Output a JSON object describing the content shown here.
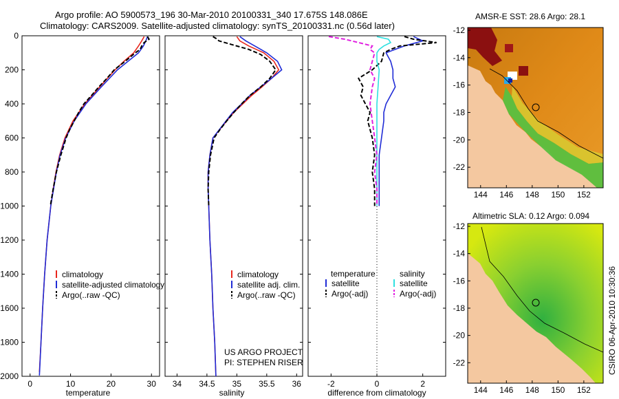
{
  "header": {
    "line1": "Argo profile: AO 5900573_196 30-Mar-2010 20100331_340 17.675S 148.086E",
    "line2": "Climatology: CARS2009. Satellite-adjusted climatology: synTS_20100331.nc (0.56d later)"
  },
  "colors": {
    "climatology": "#e8261c",
    "satellite": "#1f2bd6",
    "argo": "#000000",
    "sal_satellite": "#2ee0e0",
    "sal_argo": "#e020e0",
    "land": "#f4c8a0"
  },
  "chart_data": [
    {
      "type": "line",
      "id": "temperature-profile",
      "xlabel": "temperature",
      "ylabel": "",
      "xlim": [
        -2,
        32
      ],
      "ylim": [
        2000,
        0
      ],
      "xticks": [
        0,
        10,
        20,
        30
      ],
      "yticks": [
        0,
        200,
        400,
        600,
        800,
        1000,
        1200,
        1400,
        1600,
        1800,
        2000
      ],
      "legend": [
        "climatology",
        "satellite-adjusted climatology",
        "Argo(..raw -QC)"
      ],
      "series": [
        {
          "name": "climatology",
          "depth": [
            5,
            30,
            60,
            100,
            150,
            200,
            300,
            400,
            500,
            600,
            700,
            800,
            900,
            1000,
            1200,
            1400,
            1600,
            1800,
            1975
          ],
          "values": [
            28.2,
            27.6,
            26.8,
            25.6,
            23.2,
            21.0,
            17.2,
            13.5,
            10.6,
            8.6,
            7.3,
            6.4,
            5.7,
            5.1,
            4.2,
            3.6,
            3.1,
            2.7,
            2.3
          ]
        },
        {
          "name": "satellite-adjusted climatology",
          "depth": [
            5,
            30,
            60,
            100,
            150,
            200,
            300,
            400,
            500,
            600,
            700,
            800,
            900,
            1000,
            1200,
            1400,
            1600,
            1800,
            1995
          ],
          "values": [
            29.0,
            28.6,
            28.0,
            26.8,
            24.2,
            21.6,
            17.6,
            13.8,
            10.9,
            8.8,
            7.4,
            6.5,
            5.8,
            5.1,
            4.2,
            3.6,
            3.1,
            2.7,
            2.3
          ]
        },
        {
          "name": "Argo(..raw -QC)",
          "depth": [
            5,
            20,
            40,
            60,
            80,
            100,
            150,
            200,
            250,
            300,
            350,
            400,
            450,
            500,
            550,
            600,
            700,
            800,
            900,
            1000
          ],
          "values": [
            29.0,
            29.4,
            28.2,
            27.6,
            27.2,
            26.0,
            23.5,
            20.8,
            19.0,
            17.0,
            15.2,
            13.3,
            12.0,
            10.9,
            9.8,
            8.9,
            7.6,
            6.5,
            5.7,
            5.0
          ]
        }
      ]
    },
    {
      "type": "line",
      "id": "salinity-profile",
      "xlabel": "salinity",
      "ylabel": "",
      "xlim": [
        33.8,
        36.1
      ],
      "ylim": [
        2000,
        0
      ],
      "xticks": [
        34,
        34.5,
        35,
        35.5,
        36
      ],
      "tick_labels": [
        "34",
        "34.5",
        "35",
        "35.5",
        "36"
      ],
      "legend": [
        "climatology",
        "satellite adj. clim.",
        "Argo(..raw -QC)"
      ],
      "series": [
        {
          "name": "climatology",
          "depth": [
            5,
            30,
            60,
            100,
            150,
            200,
            250,
            300,
            350,
            400,
            450,
            500,
            600,
            700,
            800,
            900,
            1000,
            1200,
            1400,
            1600,
            1800,
            2000
          ],
          "values": [
            35.0,
            35.05,
            35.2,
            35.45,
            35.62,
            35.7,
            35.58,
            35.42,
            35.25,
            35.1,
            34.95,
            34.83,
            34.6,
            34.55,
            34.52,
            34.52,
            34.53,
            34.55,
            34.58,
            34.6,
            34.63,
            34.65
          ]
        },
        {
          "name": "satellite adj. clim.",
          "depth": [
            5,
            30,
            60,
            100,
            150,
            200,
            250,
            300,
            350,
            400,
            450,
            500,
            600,
            700,
            800,
            900,
            1000,
            1200,
            1400,
            1600,
            1800,
            2000
          ],
          "values": [
            35.05,
            35.15,
            35.3,
            35.5,
            35.68,
            35.75,
            35.58,
            35.4,
            35.22,
            35.08,
            34.93,
            34.82,
            34.6,
            34.55,
            34.52,
            34.52,
            34.53,
            34.55,
            34.58,
            34.6,
            34.63,
            34.65
          ]
        },
        {
          "name": "Argo(..raw -QC)",
          "depth": [
            5,
            15,
            30,
            50,
            80,
            110,
            150,
            200,
            250,
            300,
            350,
            400,
            450,
            500,
            550,
            600,
            700,
            800,
            900,
            1000
          ],
          "values": [
            34.6,
            34.65,
            34.7,
            34.9,
            35.2,
            35.4,
            35.55,
            35.65,
            35.55,
            35.4,
            35.22,
            35.08,
            34.95,
            34.83,
            34.72,
            34.62,
            34.56,
            34.53,
            34.52,
            34.53
          ]
        }
      ]
    },
    {
      "type": "line",
      "id": "difference-profile",
      "xlabel": "difference from climatology",
      "ylabel": "",
      "xlim": [
        -3,
        3
      ],
      "ylim": [
        2000,
        0
      ],
      "xticks": [
        -2,
        0,
        2
      ],
      "legend_headers": [
        "temperature",
        "salinity"
      ],
      "legend": [
        "satellite",
        "Argo(-adj)",
        "satellite",
        "Argo(-adj)"
      ],
      "series": [
        {
          "name": "temperature satellite",
          "depth": [
            5,
            30,
            60,
            100,
            150,
            200,
            250,
            300,
            350,
            400,
            450,
            500,
            600,
            700,
            800,
            900,
            1000
          ],
          "values": [
            1.6,
            2.0,
            1.2,
            0.4,
            0.6,
            0.7,
            0.7,
            0.8,
            0.6,
            0.4,
            0.3,
            0.3,
            0.2,
            0.1,
            0.1,
            0.1,
            0.1
          ]
        },
        {
          "name": "temperature Argo(-adj)",
          "depth": [
            5,
            20,
            40,
            60,
            80,
            100,
            150,
            200,
            250,
            300,
            350,
            400,
            450,
            500,
            600,
            700,
            800,
            900,
            1000
          ],
          "values": [
            1.2,
            1.6,
            2.6,
            1.0,
            0.6,
            0.3,
            0.2,
            -0.2,
            -0.8,
            -0.6,
            -0.7,
            -0.5,
            -0.3,
            -0.4,
            -0.2,
            -0.1,
            -0.2,
            -0.1,
            -0.1
          ]
        },
        {
          "name": "salinity satellite",
          "depth": [
            5,
            20,
            40,
            60,
            80,
            100,
            150,
            200,
            300,
            400,
            500,
            600,
            700,
            800,
            900,
            1000
          ],
          "values": [
            0.0,
            0.5,
            0.6,
            0.3,
            0.1,
            0.0,
            0.0,
            0.1,
            0.05,
            0.0,
            0.0,
            0.0,
            0.0,
            0.0,
            0.0,
            0.0
          ]
        },
        {
          "name": "salinity Argo(-adj)",
          "depth": [
            5,
            20,
            40,
            60,
            80,
            100,
            150,
            200,
            250,
            300,
            400,
            500,
            600,
            700,
            800,
            900,
            1000
          ],
          "values": [
            -2.1,
            -1.4,
            -0.8,
            -0.2,
            -0.3,
            -0.1,
            -0.2,
            -0.3,
            -0.1,
            -0.2,
            -0.3,
            -0.2,
            -0.1,
            0.0,
            -0.1,
            0.0,
            0.0
          ]
        }
      ]
    },
    {
      "type": "heatmap",
      "id": "sst-map",
      "title": "AMSR-E SST: 28.6  Argo: 28.1",
      "xlim": [
        143,
        153.5
      ],
      "ylim": [
        -23.5,
        -11.8
      ],
      "xticks": [
        144,
        146,
        148,
        150,
        152
      ],
      "yticks": [
        -12,
        -14,
        -16,
        -18,
        -20,
        -22
      ],
      "argo_position": {
        "lon": 148.086,
        "lat": -17.675
      }
    },
    {
      "type": "heatmap",
      "id": "sla-map",
      "title": "Altimetric SLA: 0.12  Argo: 0.094",
      "xlim": [
        143,
        153.5
      ],
      "ylim": [
        -23.5,
        -11.8
      ],
      "xticks": [
        144,
        146,
        148,
        150,
        152
      ],
      "yticks": [
        -12,
        -14,
        -16,
        -18,
        -20,
        -22
      ],
      "argo_position": {
        "lon": 148.086,
        "lat": -17.675
      }
    }
  ],
  "annotations": {
    "project": "US ARGO PROJECT",
    "pi": "PI: STEPHEN RISER",
    "credit": "CSIRO 06-Apr-2010 10:30:36"
  }
}
